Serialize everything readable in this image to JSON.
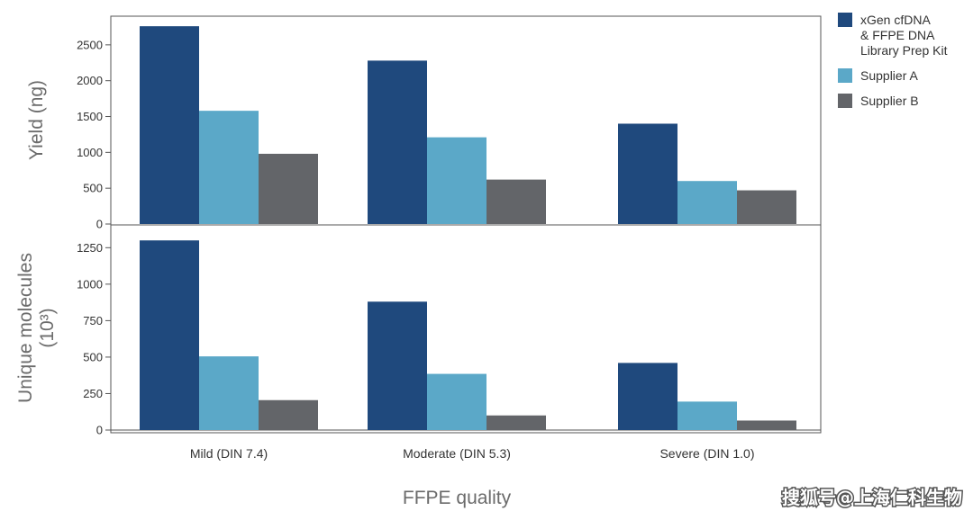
{
  "chart_data": {
    "type": "bar",
    "categories": [
      "Mild (DIN 7.4)",
      "Moderate (DIN 5.3)",
      "Severe (DIN 1.0)"
    ],
    "xlabel": "FFPE quality",
    "legend_position": "right",
    "grid": false,
    "series_colors": [
      "#1f497d",
      "#5ba8c8",
      "#636569"
    ],
    "legend": [
      {
        "label_lines": [
          "xGen cfDNA",
          "& FFPE DNA",
          "Library Prep Kit"
        ]
      },
      {
        "label_lines": [
          "Supplier A"
        ]
      },
      {
        "label_lines": [
          "Supplier B"
        ]
      }
    ],
    "panels": [
      {
        "ylabel_lines": [
          "Yield (ng)"
        ],
        "ylim": [
          0,
          2900
        ],
        "yticks": [
          0,
          500,
          1000,
          1500,
          2000,
          2500
        ],
        "series": [
          {
            "values": [
              2760,
              2280,
              1400
            ]
          },
          {
            "values": [
              1580,
              1210,
              600
            ]
          },
          {
            "values": [
              980,
              620,
              470
            ]
          }
        ]
      },
      {
        "ylabel_lines": [
          "Unique molecules",
          "(10³)"
        ],
        "ylim": [
          0,
          1400
        ],
        "yticks": [
          0,
          250,
          500,
          750,
          1000,
          1250
        ],
        "series": [
          {
            "values": [
              1300,
              880,
              460
            ]
          },
          {
            "values": [
              505,
              385,
              195
            ]
          },
          {
            "values": [
              205,
              100,
              65
            ]
          }
        ]
      }
    ]
  },
  "watermark": "搜狐号@上海仁科生物"
}
